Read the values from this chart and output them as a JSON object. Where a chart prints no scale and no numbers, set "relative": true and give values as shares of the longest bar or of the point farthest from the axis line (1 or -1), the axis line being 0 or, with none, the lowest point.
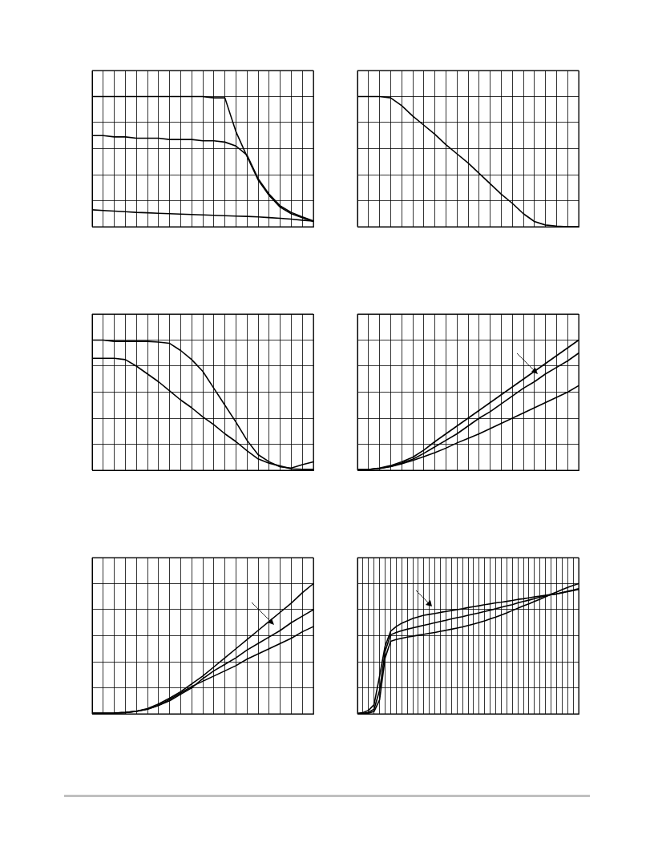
{
  "chart_data": [
    {
      "type": "line",
      "relative": true,
      "grid": true,
      "tick_labels": false,
      "marker": "none",
      "categories": [
        null,
        null,
        null,
        null,
        null,
        null,
        null,
        null,
        null,
        null,
        null,
        null,
        null,
        null,
        null,
        null,
        null,
        null,
        null,
        null,
        null
      ],
      "series": [
        {
          "color": "#000000",
          "values": [
            1.0,
            1.0,
            1.0,
            1.0,
            1.0,
            1.0,
            1.0,
            1.0,
            1.0,
            1.0,
            1.0,
            0.99,
            0.99,
            0.73,
            0.54,
            0.36,
            0.24,
            0.15,
            0.1,
            0.07,
            0.04
          ]
        },
        {
          "color": "#000000",
          "values": [
            0.7,
            0.7,
            0.69,
            0.69,
            0.68,
            0.68,
            0.68,
            0.67,
            0.67,
            0.67,
            0.66,
            0.66,
            0.65,
            0.62,
            0.55,
            0.37,
            0.25,
            0.16,
            0.11,
            0.075,
            0.045
          ]
        },
        {
          "color": "#000000",
          "values": [
            0.13,
            0.125,
            0.12,
            0.115,
            0.11,
            0.107,
            0.103,
            0.1,
            0.097,
            0.094,
            0.091,
            0.088,
            0.085,
            0.082,
            0.079,
            0.075,
            0.07,
            0.065,
            0.058,
            0.05,
            0.043
          ]
        }
      ]
    },
    {
      "type": "line",
      "relative": true,
      "grid": true,
      "tick_labels": false,
      "marker": "none",
      "categories": [
        null,
        null,
        null,
        null,
        null,
        null,
        null,
        null,
        null,
        null,
        null,
        null,
        null,
        null,
        null,
        null,
        null,
        null,
        null,
        null,
        null
      ],
      "series": [
        {
          "color": "#000000",
          "values": [
            1.0,
            1.0,
            1.0,
            0.99,
            0.93,
            0.85,
            0.78,
            0.71,
            0.63,
            0.56,
            0.49,
            0.41,
            0.33,
            0.25,
            0.18,
            0.1,
            0.04,
            0.013,
            0.005,
            0.0,
            0.0
          ]
        }
      ]
    },
    {
      "type": "line",
      "relative": true,
      "grid": true,
      "tick_labels": false,
      "marker": "none",
      "categories": [
        null,
        null,
        null,
        null,
        null,
        null,
        null,
        null,
        null,
        null,
        null,
        null,
        null,
        null,
        null,
        null,
        null,
        null,
        null,
        null,
        null
      ],
      "series": [
        {
          "color": "#000000",
          "values": [
            1.0,
            1.0,
            0.99,
            0.99,
            0.99,
            0.99,
            0.985,
            0.975,
            0.92,
            0.85,
            0.76,
            0.63,
            0.5,
            0.37,
            0.23,
            0.12,
            0.065,
            0.026,
            0.017,
            0.043,
            0.065
          ]
        },
        {
          "color": "#000000",
          "values": [
            0.86,
            0.86,
            0.86,
            0.85,
            0.8,
            0.74,
            0.68,
            0.61,
            0.54,
            0.48,
            0.41,
            0.35,
            0.28,
            0.22,
            0.15,
            0.087,
            0.054,
            0.033,
            0.011,
            0.007,
            0.007
          ]
        }
      ]
    },
    {
      "type": "line",
      "relative": true,
      "grid": true,
      "tick_labels": false,
      "marker": "none",
      "categories": [
        null,
        null,
        null,
        null,
        null,
        null,
        null,
        null,
        null,
        null,
        null,
        null,
        null,
        null,
        null,
        null,
        null,
        null,
        null,
        null,
        null
      ],
      "series": [
        {
          "color": "#000000",
          "values": [
            0.004,
            0.006,
            0.016,
            0.036,
            0.064,
            0.1,
            0.155,
            0.22,
            0.28,
            0.34,
            0.4,
            0.46,
            0.52,
            0.58,
            0.64,
            0.7,
            0.76,
            0.82,
            0.88,
            0.94,
            1.0
          ]
        },
        {
          "color": "#000000",
          "values": [
            0.004,
            0.006,
            0.014,
            0.03,
            0.055,
            0.085,
            0.13,
            0.18,
            0.23,
            0.28,
            0.34,
            0.4,
            0.45,
            0.51,
            0.57,
            0.63,
            0.68,
            0.74,
            0.79,
            0.84,
            0.9
          ]
        },
        {
          "color": "#000000",
          "values": [
            0.004,
            0.006,
            0.014,
            0.028,
            0.05,
            0.075,
            0.105,
            0.135,
            0.17,
            0.21,
            0.245,
            0.28,
            0.32,
            0.36,
            0.4,
            0.44,
            0.48,
            0.52,
            0.56,
            0.6,
            0.65
          ]
        }
      ]
    },
    {
      "type": "line",
      "relative": true,
      "grid": true,
      "tick_labels": false,
      "marker": "none",
      "categories": [
        null,
        null,
        null,
        null,
        null,
        null,
        null,
        null,
        null,
        null,
        null,
        null,
        null,
        null,
        null,
        null,
        null,
        null,
        null,
        null,
        null
      ],
      "series": [
        {
          "color": "#000000",
          "values": [
            0.004,
            0.004,
            0.006,
            0.01,
            0.02,
            0.04,
            0.075,
            0.12,
            0.17,
            0.23,
            0.29,
            0.36,
            0.43,
            0.5,
            0.57,
            0.64,
            0.71,
            0.78,
            0.85,
            0.93,
            1.0
          ]
        },
        {
          "color": "#000000",
          "values": [
            0.004,
            0.004,
            0.006,
            0.01,
            0.02,
            0.035,
            0.065,
            0.1,
            0.15,
            0.2,
            0.27,
            0.33,
            0.38,
            0.43,
            0.49,
            0.54,
            0.59,
            0.64,
            0.7,
            0.75,
            0.8
          ]
        },
        {
          "color": "#000000",
          "values": [
            0.004,
            0.004,
            0.006,
            0.01,
            0.018,
            0.035,
            0.065,
            0.11,
            0.16,
            0.21,
            0.25,
            0.29,
            0.33,
            0.37,
            0.42,
            0.46,
            0.5,
            0.54,
            0.58,
            0.63,
            0.67
          ]
        }
      ]
    },
    {
      "type": "line",
      "relative": true,
      "grid": true,
      "tick_labels": false,
      "marker": "none",
      "categories": [
        null,
        null,
        null,
        null,
        null,
        null,
        null,
        null,
        null,
        null,
        null,
        null,
        null,
        null,
        null,
        null,
        null,
        null,
        null,
        null,
        null,
        null,
        null,
        null,
        null,
        null,
        null,
        null,
        null,
        null,
        null,
        null,
        null,
        null,
        null,
        null,
        null,
        null,
        null,
        null,
        null
      ],
      "series": [
        {
          "color": "#000000",
          "values": [
            0.004,
            0.009,
            0.027,
            0.07,
            0.29,
            0.52,
            0.634,
            0.67,
            0.696,
            0.714,
            0.732,
            0.745,
            0.757,
            0.764,
            0.771,
            0.779,
            0.786,
            0.793,
            0.8,
            0.807,
            0.816,
            0.823,
            0.83,
            0.838,
            0.845,
            0.852,
            0.857,
            0.864,
            0.871,
            0.879,
            0.884,
            0.891,
            0.898,
            0.904,
            0.911,
            0.916,
            0.921,
            0.93,
            0.941,
            0.95,
            0.961
          ]
        },
        {
          "color": "#000000",
          "values": [
            0.0,
            0.004,
            0.011,
            0.036,
            0.18,
            0.48,
            0.607,
            0.625,
            0.638,
            0.65,
            0.66,
            0.67,
            0.68,
            0.689,
            0.7,
            0.709,
            0.718,
            0.729,
            0.738,
            0.746,
            0.757,
            0.766,
            0.775,
            0.786,
            0.796,
            0.807,
            0.818,
            0.829,
            0.839,
            0.852,
            0.863,
            0.873,
            0.884,
            0.895,
            0.905,
            0.916,
            0.921,
            0.93,
            0.938,
            0.946,
            0.955
          ]
        },
        {
          "color": "#000000",
          "values": [
            0.0,
            0.0,
            0.004,
            0.018,
            0.107,
            0.43,
            0.557,
            0.571,
            0.58,
            0.589,
            0.596,
            0.604,
            0.611,
            0.618,
            0.625,
            0.634,
            0.641,
            0.65,
            0.659,
            0.668,
            0.679,
            0.689,
            0.702,
            0.714,
            0.729,
            0.743,
            0.759,
            0.775,
            0.793,
            0.811,
            0.829,
            0.845,
            0.863,
            0.88,
            0.898,
            0.918,
            0.936,
            0.954,
            0.971,
            0.986,
            1.0
          ]
        }
      ]
    }
  ]
}
